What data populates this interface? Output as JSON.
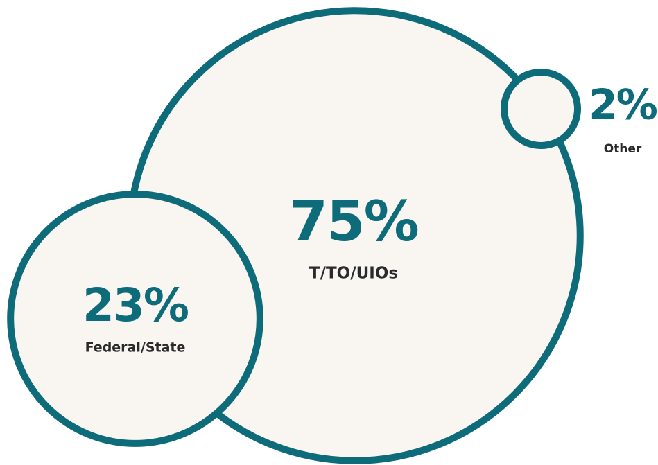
{
  "chart_data": {
    "type": "bubble",
    "categories": [
      "T/TO/UIOs",
      "Federal/State",
      "Other"
    ],
    "values": [
      75,
      23,
      2
    ],
    "value_labels": [
      "75%",
      "23%",
      "2%"
    ],
    "color": "#0e6b7a",
    "fill": "#f9f6f2"
  }
}
